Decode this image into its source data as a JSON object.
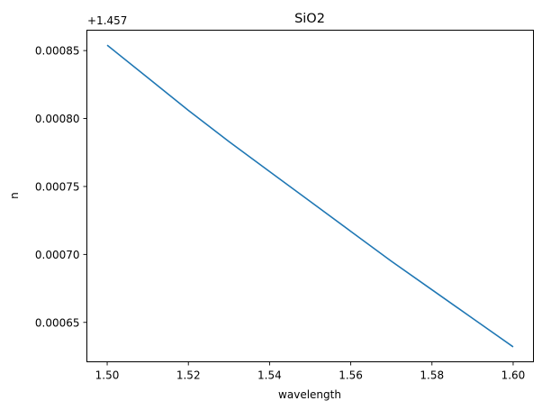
{
  "chart_data": {
    "type": "line",
    "title": "SiO2",
    "xlabel": "wavelength",
    "ylabel": "n",
    "y_offset_label": "+1.457",
    "y_offset": 1.457,
    "xlim": [
      1.495,
      1.605
    ],
    "ylim": [
      0.000621,
      0.000865
    ],
    "grid": false,
    "legend": null,
    "x_ticks": [
      1.5,
      1.52,
      1.54,
      1.56,
      1.58,
      1.6
    ],
    "x_tick_labels": [
      "1.50",
      "1.52",
      "1.54",
      "1.56",
      "1.58",
      "1.60"
    ],
    "y_ticks": [
      0.00065,
      0.0007,
      0.00075,
      0.0008,
      0.00085
    ],
    "y_tick_labels": [
      "0.00065",
      "0.00070",
      "0.00075",
      "0.00080",
      "0.00085"
    ],
    "series": [
      {
        "name": "SiO2",
        "color": "#1f77b4",
        "x": [
          1.5,
          1.51,
          1.52,
          1.53,
          1.54,
          1.55,
          1.56,
          1.57,
          1.58,
          1.59,
          1.6
        ],
        "values": [
          0.000854,
          0.00083,
          0.000806,
          0.000783,
          0.000761,
          0.000739,
          0.000717,
          0.000695,
          0.000674,
          0.000653,
          0.000632
        ]
      }
    ]
  }
}
